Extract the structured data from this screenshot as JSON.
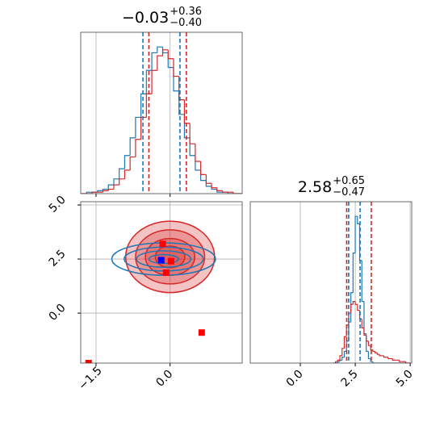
{
  "chart_data": [
    {
      "type": "histogram",
      "title": {
        "value": "−0.03",
        "upper": "+0.36",
        "lower": "−0.40"
      },
      "bins": [
        -1.8,
        -1.69,
        -1.58,
        -1.47,
        -1.36,
        -1.25,
        -1.14,
        -1.03,
        -0.92,
        -0.81,
        -0.7,
        -0.59,
        -0.48,
        -0.37,
        -0.26,
        -0.15,
        -0.04,
        0.07,
        0.18,
        0.29,
        0.4,
        0.51,
        0.62,
        0.73,
        0.84,
        0.95,
        1.06,
        1.17,
        1.28,
        1.39,
        1.5
      ],
      "series": [
        {
          "color": "#1f77b4",
          "counts": [
            0,
            1,
            1,
            2,
            3,
            6,
            10,
            17,
            26,
            38,
            52,
            68,
            84,
            96,
            100,
            96,
            86,
            70,
            54,
            38,
            26,
            16,
            9,
            5,
            3,
            1,
            1,
            0,
            0,
            0
          ]
        },
        {
          "color": "#d62728",
          "counts": [
            0,
            0,
            1,
            1,
            2,
            3,
            6,
            10,
            16,
            25,
            37,
            52,
            68,
            84,
            94,
            98,
            92,
            80,
            64,
            48,
            34,
            22,
            13,
            7,
            4,
            2,
            1,
            1,
            0,
            0
          ]
        }
      ],
      "quantiles": [
        {
          "color": "#1f77b4",
          "values": [
            -0.55,
            0.2
          ]
        },
        {
          "color": "#d62728",
          "values": [
            -0.43,
            0.33
          ]
        }
      ],
      "xlim": [
        -1.81,
        1.46
      ],
      "xticks": [
        -1.5,
        0
      ],
      "xtick_labels": false,
      "ylim": [
        0,
        110
      ],
      "grid": true
    },
    {
      "type": "contour",
      "contours": [
        {
          "color": "#d62728",
          "filled": true,
          "center": [
            0.0,
            2.6
          ],
          "levels": [
            [
              0.9,
              1.65
            ],
            [
              0.7,
              1.25
            ],
            [
              0.5,
              0.85
            ],
            [
              0.3,
              0.5
            ]
          ]
        },
        {
          "color": "#1f77b4",
          "filled": false,
          "center": [
            -0.13,
            2.5
          ],
          "levels": [
            [
              1.05,
              0.75
            ],
            [
              0.8,
              0.55
            ],
            [
              0.55,
              0.38
            ],
            [
              0.3,
              0.2
            ]
          ]
        }
      ],
      "points": [
        {
          "color": "#ff0000",
          "x": [
            -0.15,
            -0.08,
            0.02,
            0.64,
            -1.65
          ],
          "y": [
            3.2,
            1.87,
            2.4,
            -0.9,
            -2.31
          ]
        },
        {
          "color": "#0000ff",
          "x": [
            -0.18
          ],
          "y": [
            2.45
          ]
        }
      ],
      "xlim": [
        -1.81,
        1.46
      ],
      "xticks": [
        {
          "value": -1.5,
          "label": "−1.5"
        },
        {
          "value": 0,
          "label": "0.0"
        }
      ],
      "ylim": [
        -2.31,
        5.15
      ],
      "yticks": [
        {
          "value": 0,
          "label": "0.0"
        },
        2.5,
        {
          "value": 5,
          "label": "5.0"
        }
      ],
      "grid": true
    },
    {
      "type": "histogram",
      "title": {
        "value": "2.58",
        "upper": "+0.65",
        "lower": "−0.47"
      },
      "bins": [
        1.5,
        1.6,
        1.7,
        1.8,
        1.9,
        2.0,
        2.1,
        2.2,
        2.3,
        2.4,
        2.5,
        2.6,
        2.7,
        2.8,
        2.9,
        3.0,
        3.1,
        3.2,
        3.3,
        3.4,
        3.5,
        3.6,
        3.7,
        3.8,
        3.9,
        4.0,
        4.1,
        4.2,
        4.3,
        4.4,
        4.5,
        4.6,
        4.7,
        4.8,
        4.9,
        5.0
      ],
      "series": [
        {
          "color": "#1f77b4",
          "counts": [
            0,
            0,
            1,
            2,
            4,
            8,
            15,
            28,
            48,
            75,
            100,
            95,
            70,
            42,
            20,
            8,
            3,
            1,
            0,
            0,
            0,
            0,
            0,
            0,
            0,
            0,
            0,
            0,
            0,
            0,
            0,
            0,
            0,
            0,
            0
          ]
        },
        {
          "color": "#d62728",
          "counts": [
            0,
            1,
            2,
            5,
            10,
            18,
            26,
            34,
            40,
            42,
            40,
            36,
            30,
            24,
            19,
            15,
            12,
            9,
            8,
            7,
            6,
            5,
            5,
            4,
            4,
            3,
            3,
            2,
            2,
            2,
            1,
            1,
            1,
            0,
            0
          ]
        }
      ],
      "quantiles": [
        {
          "color": "#1f77b4",
          "values": [
            2.2,
            2.72
          ]
        },
        {
          "color": "#d62728",
          "values": [
            2.11,
            3.23
          ]
        }
      ],
      "xlim": [
        -2.28,
        5.07
      ],
      "xticks": [
        {
          "value": 0,
          "label": "0.0"
        },
        2.5,
        {
          "value": 5,
          "label": "5.0"
        }
      ],
      "xtick_labels": true,
      "ylim": [
        0,
        110
      ],
      "grid": true
    }
  ]
}
